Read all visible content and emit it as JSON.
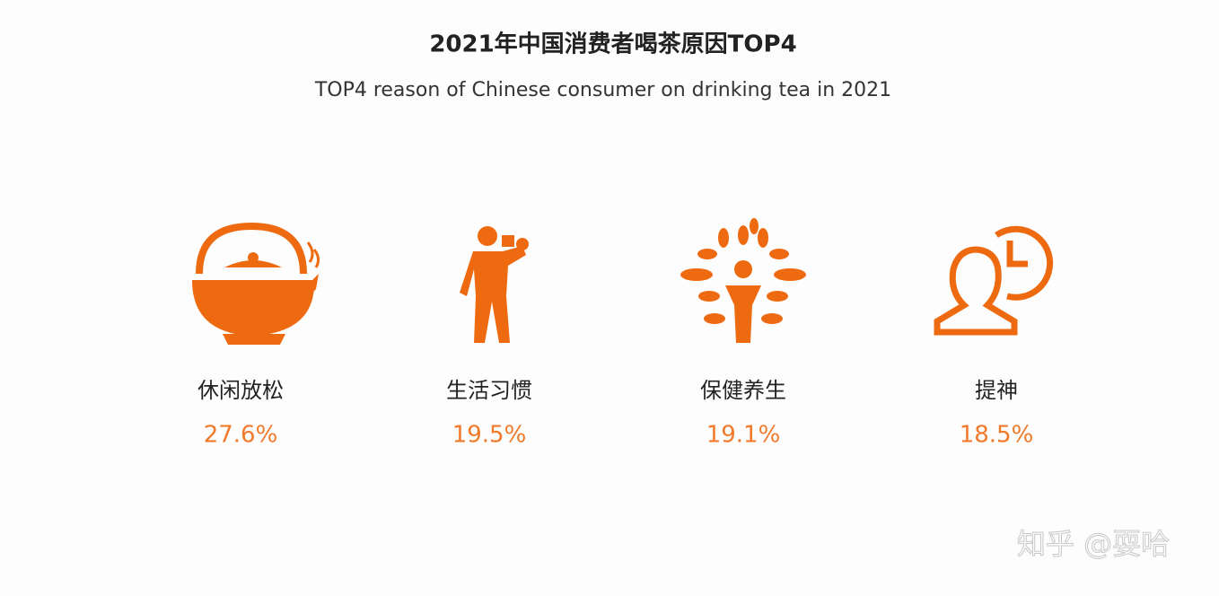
{
  "header": {
    "title": "2021年中国消费者喝茶原因TOP4",
    "subtitle": "TOP4 reason of Chinese consumer on drinking tea in 2021"
  },
  "items": [
    {
      "label": "休闲放松",
      "value": "27.6%"
    },
    {
      "label": "生活习惯",
      "value": "19.5%"
    },
    {
      "label": "保健养生",
      "value": "19.1%"
    },
    {
      "label": "提神",
      "value": "18.5%"
    }
  ],
  "watermark": "知乎 @耍哈"
}
